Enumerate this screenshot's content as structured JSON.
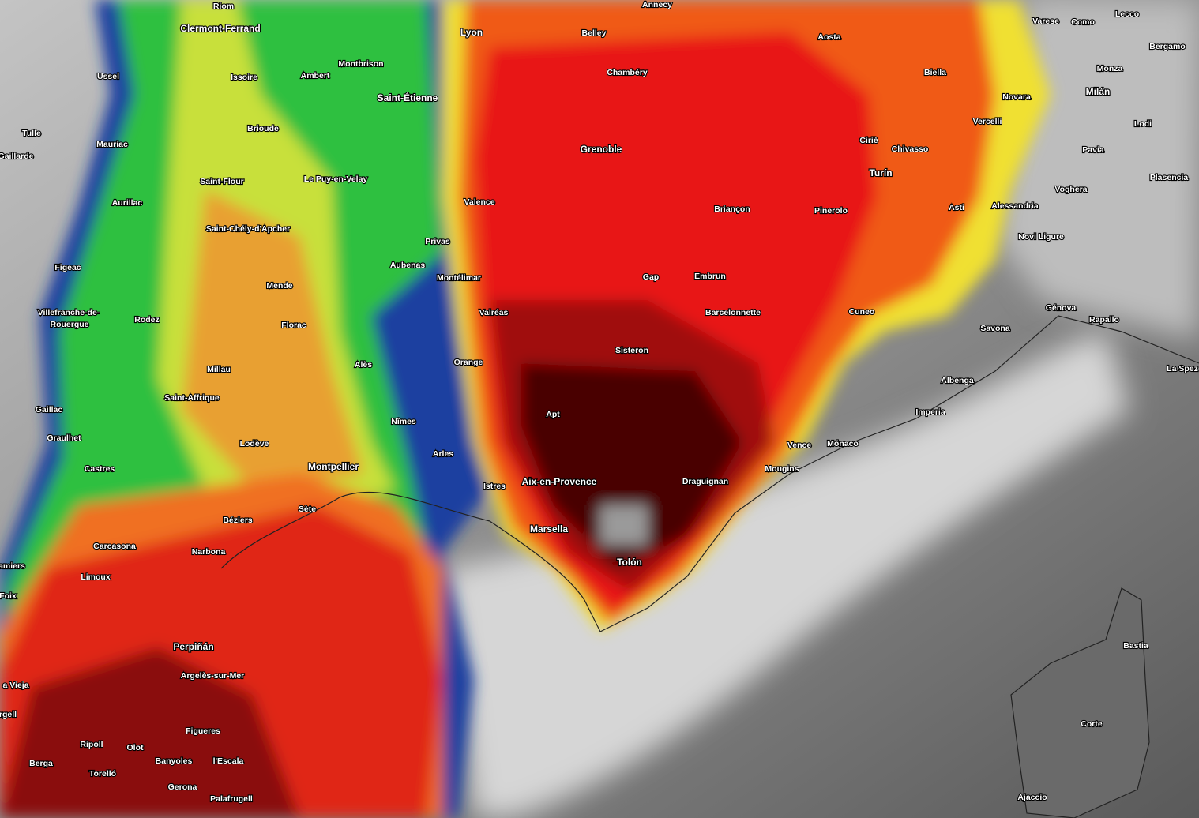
{
  "places": [
    "Riom",
    "Annecy",
    "Clermont-Ferrand",
    "Lyon",
    "Belley",
    "Aosta",
    "Varese",
    "Como",
    "Lecco",
    "Bergamo",
    "Ussel",
    "Montbrison",
    "Ambert",
    "Issoire",
    "Chambéry",
    "Biella",
    "Monza",
    "Novara",
    "Milán",
    "Saint-Étienne",
    "Tulle",
    "Brioude",
    "Vercelli",
    "Lodi",
    "Mauriac",
    "Grenoble",
    "Ciriè",
    "Chivasso",
    "Pavia",
    "Gaillarde",
    "Turín",
    "Plasencia",
    "Saint-Flour",
    "Le Puy-en-Velay",
    "Voghera",
    "Aurillac",
    "Valence",
    "Briançon",
    "Pinerolo",
    "Asti",
    "Alessandria",
    "Saint-Chély-d'Apcher",
    "Privas",
    "Novi Ligure",
    "Figeac",
    "Aubenas",
    "Montélimar",
    "Gap",
    "Embrun",
    "Mende",
    "Villefranche-de-",
    "Rouergue",
    "Génova",
    "Rodez",
    "Valréas",
    "Barcelonnette",
    "Cuneo",
    "Rapallo",
    "Florac",
    "Savona",
    "Sisteron",
    "Alès",
    "Orange",
    "Millau",
    "La Spez",
    "Albenga",
    "Saint-Affrique",
    "Gaillac",
    "Apt",
    "Imperia",
    "Nîmes",
    "Graulhet",
    "Lodève",
    "Vence",
    "Mónaco",
    "Arles",
    "Montpellier",
    "Castres",
    "Mougins",
    "Aix-en-Provence",
    "Draguignan",
    "Istres",
    "Sète",
    "Béziers",
    "Marsella",
    "Carcasona",
    "Narbona",
    "Tolón",
    "amiers",
    "Limoux",
    "Foix",
    "Bastia",
    "Perpiñán",
    "Argelès-sur-Mer",
    "a Vieja",
    "rgell",
    "Corte",
    "Figueres",
    "Ripoll",
    "Olot",
    "Berga",
    "Banyoles",
    "l'Escala",
    "Torelló",
    "Gerona",
    "Ajaccio",
    "Palafrugell"
  ]
}
